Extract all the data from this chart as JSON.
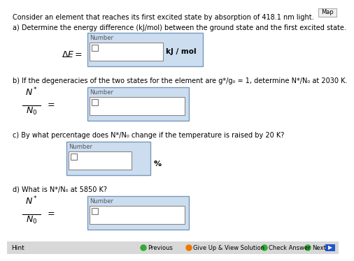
{
  "bg_color": "#ffffff",
  "text_color": "#000000",
  "box_bg": "#ccddf0",
  "box_border": "#7799bb",
  "input_bg": "#ffffff",
  "input_border": "#888888",
  "title_text": "Consider an element that reaches its first excited state by absorption of 418.1 nm light.",
  "q_a": "a) Determine the energy difference (kJ/mol) between the ground state and the first excited state.",
  "q_b": "b) If the degeneracies of the two states for the element are g*/g₀ = 1, determine N*/N₀ at 2030 K.",
  "q_c": "c) By what percentage does N*/N₀ change if the temperature is raised by 20 K?",
  "q_d": "d) What is N*/N₀ at 5850 K?",
  "unit_a": "kJ / mol",
  "unit_c": "%",
  "number_label": "Number",
  "map_label": "Map",
  "bottom_bar_color": "#d8d8d8",
  "hint_label": "Hint",
  "prev_label": "Previous",
  "sol_label": "Give Up & View Solution",
  "check_label": "Check Answer",
  "next_label": "Next",
  "green_color": "#33aa33",
  "orange_color": "#ee7700",
  "blue_arrow_color": "#2255cc",
  "map_bg": "#f0f0f0",
  "map_border": "#aaaaaa"
}
